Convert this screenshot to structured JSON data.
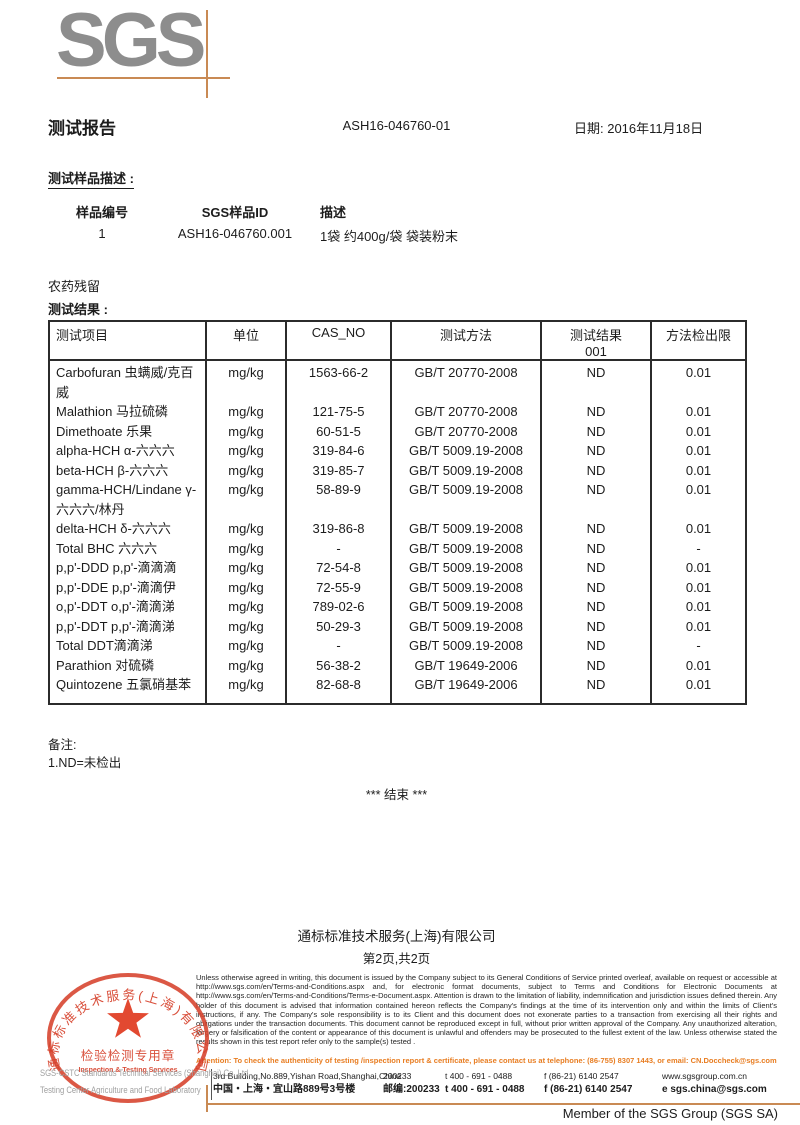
{
  "logo": {
    "text": "SGS"
  },
  "header": {
    "title": "测试报告",
    "report_no": "ASH16-046760-01",
    "date": "日期: 2016年11月18日"
  },
  "sample_section": {
    "heading": "测试样品描述 :",
    "col_sample_no": "样品编号",
    "col_sgs_id": "SGS样品ID",
    "col_desc": "描述",
    "rows": [
      {
        "sample_no": "1",
        "sgs_id": "ASH16-046760.001",
        "desc": "1袋 约400g/袋 袋装粉末"
      }
    ]
  },
  "results_section": {
    "category": "农药残留",
    "heading": "测试结果 :",
    "table": {
      "headers": [
        "测试项目",
        "单位",
        "CAS_NO",
        "测试方法",
        "测试结果",
        "方法检出限"
      ],
      "result_sub": "001",
      "rows": [
        {
          "item": "Carbofuran 虫螨威/克百威",
          "unit": "mg/kg",
          "cas": "1563-66-2",
          "method": "GB/T 20770-2008",
          "result": "ND",
          "limit": "0.01"
        },
        {
          "item": "Malathion 马拉硫磷",
          "unit": "mg/kg",
          "cas": "121-75-5",
          "method": "GB/T 20770-2008",
          "result": "ND",
          "limit": "0.01"
        },
        {
          "item": "Dimethoate 乐果",
          "unit": "mg/kg",
          "cas": "60-51-5",
          "method": "GB/T 20770-2008",
          "result": "ND",
          "limit": "0.01"
        },
        {
          "item": "alpha-HCH α-六六六",
          "unit": "mg/kg",
          "cas": "319-84-6",
          "method": "GB/T 5009.19-2008",
          "result": "ND",
          "limit": "0.01"
        },
        {
          "item": "beta-HCH β-六六六",
          "unit": "mg/kg",
          "cas": "319-85-7",
          "method": "GB/T 5009.19-2008",
          "result": "ND",
          "limit": "0.01"
        },
        {
          "item": "gamma-HCH/Lindane γ-六六六/林丹",
          "unit": "mg/kg",
          "cas": "58-89-9",
          "method": "GB/T 5009.19-2008",
          "result": "ND",
          "limit": "0.01"
        },
        {
          "item": "delta-HCH δ-六六六",
          "unit": "mg/kg",
          "cas": "319-86-8",
          "method": "GB/T 5009.19-2008",
          "result": "ND",
          "limit": "0.01"
        },
        {
          "item": "Total BHC 六六六",
          "unit": "mg/kg",
          "cas": "-",
          "method": "GB/T 5009.19-2008",
          "result": "ND",
          "limit": "-"
        },
        {
          "item": "p,p'-DDD p,p'-滴滴滴",
          "unit": "mg/kg",
          "cas": "72-54-8",
          "method": "GB/T 5009.19-2008",
          "result": "ND",
          "limit": "0.01"
        },
        {
          "item": "p,p'-DDE p,p'-滴滴伊",
          "unit": "mg/kg",
          "cas": "72-55-9",
          "method": "GB/T 5009.19-2008",
          "result": "ND",
          "limit": "0.01"
        },
        {
          "item": "o,p'-DDT o,p'-滴滴涕",
          "unit": "mg/kg",
          "cas": "789-02-6",
          "method": "GB/T 5009.19-2008",
          "result": "ND",
          "limit": "0.01"
        },
        {
          "item": "p,p'-DDT p,p'-滴滴涕",
          "unit": "mg/kg",
          "cas": "50-29-3",
          "method": "GB/T 5009.19-2008",
          "result": "ND",
          "limit": "0.01"
        },
        {
          "item": "Total DDT滴滴涕",
          "unit": "mg/kg",
          "cas": "-",
          "method": "GB/T 5009.19-2008",
          "result": "ND",
          "limit": "-"
        },
        {
          "item": "Parathion 对硫磷",
          "unit": "mg/kg",
          "cas": "56-38-2",
          "method": "GB/T 19649-2006",
          "result": "ND",
          "limit": "0.01"
        },
        {
          "item": "Quintozene 五氯硝基苯",
          "unit": "mg/kg",
          "cas": "82-68-8",
          "method": "GB/T 19649-2006",
          "result": "ND",
          "limit": "0.01"
        }
      ]
    }
  },
  "notes": {
    "heading": "备注:",
    "items": [
      "1.ND=未检出"
    ]
  },
  "end_marker": "*** 结束 ***",
  "footer": {
    "company_cn": "通标标准技术服务(上海)有限公司",
    "page_info": "第2页,共2页",
    "disclaimer": "Unless otherwise agreed in writing, this document is issued by the Company subject to its General Conditions of Service printed overleaf, available on request or accessible at http://www.sgs.com/en/Terms-and-Conditions.aspx and, for electronic format documents, subject to Terms and Conditions for Electronic Documents at http://www.sgs.com/en/Terms-and-Conditions/Terms-e-Document.aspx. Attention is drawn to the limitation of liability, indemnification and jurisdiction issues defined therein. Any holder of this document is advised that information contained hereon reflects the Company's findings at the time of its intervention only and within the limits of Client's instructions, if any. The Company's sole responsibility is to its Client and this document does not exonerate parties to a transaction from exercising all their rights and obligations under the transaction documents. This document cannot be reproduced except in full, without prior written approval of the Company. Any unauthorized alteration, forgery or falsification of the content or appearance of this document is unlawful and offenders may be prosecuted to the fullest extent of the law. Unless otherwise stated the results shown in this test report refer only to the sample(s) tested .",
    "attention": "Attention: To check the authenticity of testing /inspection report & certificate, please contact us at telephone: (86-755) 8307 1443, or email: CN.Doccheck@sgs.com",
    "address_rows": [
      {
        "addr": "3rd Building,No.889,Yishan Road,Shanghai,China",
        "postal": "200233",
        "tel": "t 400 - 691 - 0488",
        "fax": "f (86-21) 6140 2547",
        "extra": "www.sgsgroup.com.cn"
      },
      {
        "addr": "中国・上海・宜山路889号3号楼",
        "postal": "邮编:200233",
        "tel": "t 400 - 691 - 0488",
        "fax": "f (86-21) 6140 2547",
        "extra": "e  sgs.china@sgs.com"
      }
    ],
    "member": "Member of the SGS Group (SGS SA)"
  },
  "stamp": {
    "ring_text": "通标标准技术服务(上海)有限公司",
    "line1": "检验检测专用章",
    "line2": "Inspection & Testing Services",
    "company_en1": "SGS-CSTC Standards Technical Services (Shanghai) Co.,Ltd.",
    "company_en2": "Testing Center Agriculture and Food Laboratory"
  },
  "colors": {
    "accent_orange": "#c98a54",
    "attention_orange": "#e87d21",
    "stamp_red": "#d6412b",
    "logo_gray": "#8d8d8d"
  }
}
